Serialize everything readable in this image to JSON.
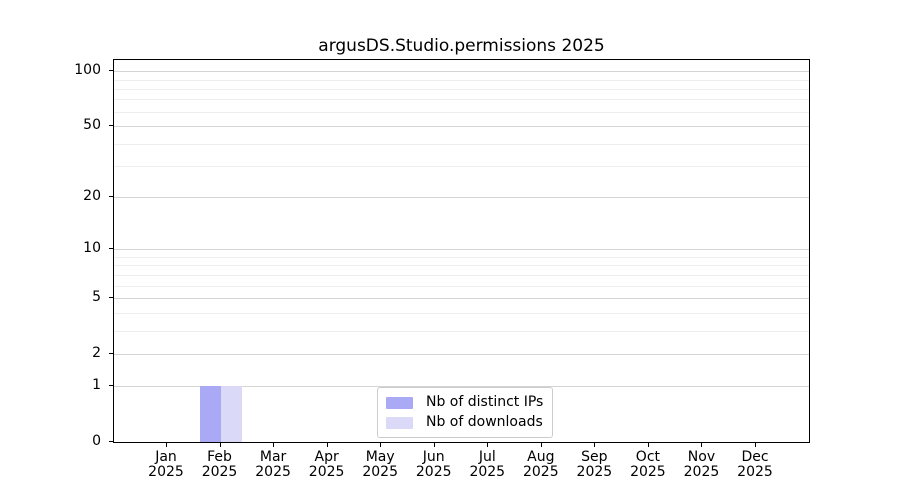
{
  "chart_data": {
    "type": "bar",
    "title": "argusDS.Studio.permissions 2025",
    "categories": [
      "Jan",
      "Feb",
      "Mar",
      "Apr",
      "May",
      "Jun",
      "Jul",
      "Aug",
      "Sep",
      "Oct",
      "Nov",
      "Dec"
    ],
    "category_year": "2025",
    "series": [
      {
        "name": "Nb of distinct IPs",
        "color": "#a9a9f5",
        "values": [
          0,
          1,
          0,
          0,
          0,
          0,
          0,
          0,
          0,
          0,
          0,
          0
        ]
      },
      {
        "name": "Nb of downloads",
        "color": "#dadaf8",
        "values": [
          0,
          1,
          0,
          0,
          0,
          0,
          0,
          0,
          0,
          0,
          0,
          0
        ]
      }
    ],
    "yscale": "log1p",
    "ylim": [
      0,
      115
    ],
    "yticks": [
      0,
      1,
      2,
      5,
      10,
      20,
      50,
      100
    ],
    "minor_yticks": [
      3,
      4,
      6,
      7,
      8,
      9,
      30,
      40,
      60,
      70,
      80,
      90
    ],
    "grid": "horizontal, major and minor, on",
    "legend_position": "lower center"
  }
}
